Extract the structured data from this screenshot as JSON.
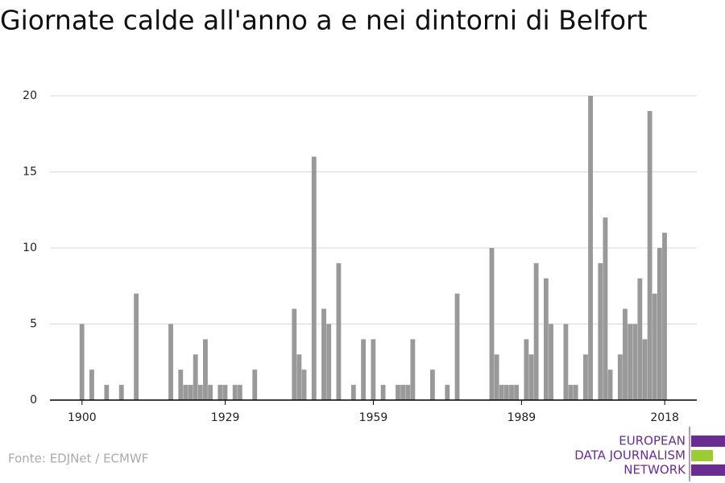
{
  "chart_data": {
    "type": "bar",
    "title": "Giornate calde all'anno a e nei dintorni di Belfort",
    "x": [
      1900,
      1901,
      1902,
      1903,
      1904,
      1905,
      1906,
      1907,
      1908,
      1909,
      1910,
      1911,
      1912,
      1913,
      1914,
      1915,
      1916,
      1917,
      1918,
      1919,
      1920,
      1921,
      1922,
      1923,
      1924,
      1925,
      1926,
      1927,
      1928,
      1929,
      1930,
      1931,
      1932,
      1933,
      1934,
      1935,
      1936,
      1937,
      1938,
      1939,
      1940,
      1941,
      1942,
      1943,
      1944,
      1945,
      1946,
      1947,
      1948,
      1949,
      1950,
      1951,
      1952,
      1953,
      1954,
      1955,
      1956,
      1957,
      1958,
      1959,
      1960,
      1961,
      1962,
      1963,
      1964,
      1965,
      1966,
      1967,
      1968,
      1969,
      1970,
      1971,
      1972,
      1973,
      1974,
      1975,
      1976,
      1977,
      1978,
      1979,
      1980,
      1981,
      1982,
      1983,
      1984,
      1985,
      1986,
      1987,
      1988,
      1989,
      1990,
      1991,
      1992,
      1993,
      1994,
      1995,
      1996,
      1997,
      1998,
      1999,
      2000,
      2001,
      2002,
      2003,
      2004,
      2005,
      2006,
      2007,
      2008,
      2009,
      2010,
      2011,
      2012,
      2013,
      2014,
      2015,
      2016,
      2017,
      2018
    ],
    "values": [
      5,
      0,
      2,
      0,
      0,
      1,
      0,
      0,
      1,
      0,
      0,
      7,
      0,
      0,
      0,
      0,
      0,
      0,
      5,
      0,
      2,
      1,
      1,
      3,
      1,
      4,
      1,
      0,
      1,
      1,
      0,
      1,
      1,
      0,
      0,
      2,
      0,
      0,
      0,
      0,
      0,
      0,
      0,
      6,
      3,
      2,
      0,
      16,
      0,
      6,
      5,
      0,
      9,
      0,
      0,
      1,
      0,
      4,
      0,
      4,
      0,
      1,
      0,
      0,
      1,
      1,
      1,
      4,
      0,
      0,
      0,
      2,
      0,
      0,
      1,
      0,
      7,
      0,
      0,
      0,
      0,
      0,
      0,
      10,
      3,
      1,
      1,
      1,
      1,
      0,
      4,
      3,
      9,
      0,
      8,
      5,
      0,
      0,
      5,
      1,
      1,
      0,
      3,
      20,
      0,
      9,
      12,
      2,
      0,
      3,
      6,
      5,
      5,
      8,
      4,
      19,
      7,
      10,
      11
    ],
    "color": "#999999",
    "xlim": [
      1893.5,
      2024.5
    ],
    "xticks": [
      1900,
      1929,
      1959,
      1989,
      2018
    ],
    "ylim": [
      0,
      20
    ],
    "yticks": [
      0,
      5,
      10,
      15,
      20
    ],
    "grid": true
  },
  "footer": {
    "source": "Fonte: EDJNet / ECMWF",
    "logo": [
      "EUROPEAN",
      "DATA JOURNALISM",
      "NETWORK"
    ]
  }
}
